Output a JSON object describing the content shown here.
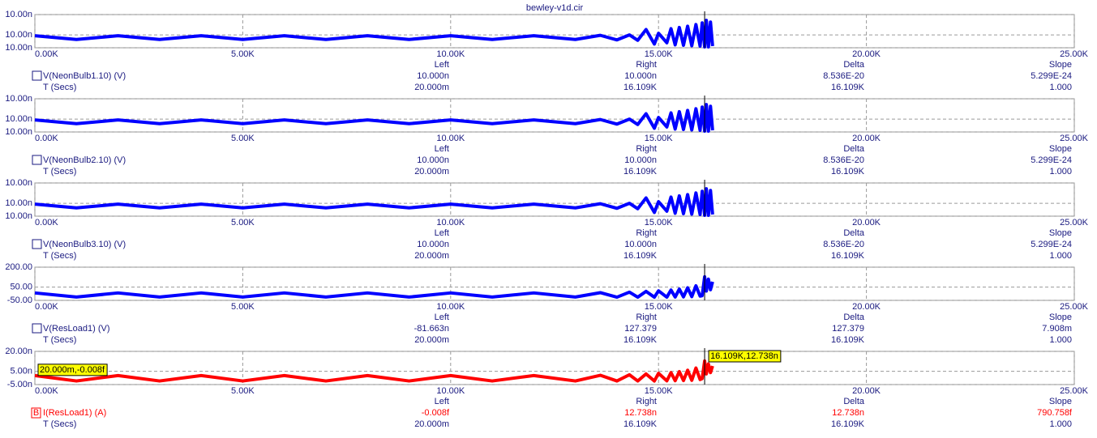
{
  "title": "bewley-v1d.cir",
  "chart_data": [
    {
      "type": "line",
      "series": [
        {
          "name": "V(NeonBulb1.10) (V)",
          "color": "#0000ff",
          "values": [
            9.9989,
            9.998,
            9.9989,
            9.998,
            9.9989,
            9.998,
            9.9989,
            9.998,
            9.9989,
            9.998,
            9.9989,
            9.998,
            9.9989,
            9.998,
            9.999,
            9.9979,
            9.9991,
            9.9978,
            10.0004,
            9.9969,
            9.9995,
            9.9972,
            10.0006,
            9.9967,
            10.0009,
            9.9966,
            10.0012,
            9.9965,
            10.0016,
            9.9964,
            10.002,
            9.9962,
            10.0026,
            9.9962,
            10.0022,
            9.9964
          ]
        }
      ],
      "x": [
        0,
        1000,
        2000,
        3000,
        4000,
        5000,
        6000,
        7000,
        8000,
        9000,
        10000,
        11000,
        12000,
        13000,
        13600,
        14000,
        14300,
        14500,
        14700,
        14900,
        15000,
        15200,
        15300,
        15400,
        15500,
        15600,
        15700,
        15800,
        15900,
        16000,
        16050,
        16109,
        16150,
        16200,
        16250,
        16300
      ],
      "xlim": [
        0,
        25000
      ],
      "xticks": [
        {
          "value": 0,
          "label": "0.00K"
        },
        {
          "value": 5000,
          "label": "5.00K"
        },
        {
          "value": 10000,
          "label": "10.00K"
        },
        {
          "value": 15000,
          "label": "15.00K"
        },
        {
          "value": 20000,
          "label": "20.00K"
        },
        {
          "value": 25000,
          "label": "25.00K"
        }
      ],
      "ylim": [
        9.996,
        10.004
      ],
      "yticks": [
        {
          "value": 10.004,
          "label": "10.00n"
        },
        {
          "value": 9.9991,
          "label": "10.00n"
        },
        {
          "value": 9.996,
          "label": "10.00n"
        }
      ],
      "grid": true,
      "cursor_x": 16109,
      "cursor": {
        "headers": [
          "Left",
          "Right",
          "Delta",
          "Slope"
        ],
        "y": [
          "10.000n",
          "10.000n",
          "8.536E-20",
          "5.299E-24"
        ],
        "x_label": "T (Secs)",
        "x": [
          "20.000m",
          "16.109K",
          "16.109K",
          "1.000"
        ]
      }
    },
    {
      "type": "line",
      "series": [
        {
          "name": "V(NeonBulb2.10) (V)",
          "color": "#0000ff",
          "values": [
            9.9989,
            9.998,
            9.9989,
            9.998,
            9.9989,
            9.998,
            9.9989,
            9.998,
            9.9989,
            9.998,
            9.9989,
            9.998,
            9.9989,
            9.998,
            9.999,
            9.9979,
            9.9991,
            9.9978,
            10.0004,
            9.9969,
            9.9995,
            9.9972,
            10.0006,
            9.9967,
            10.0009,
            9.9966,
            10.0012,
            9.9965,
            10.0016,
            9.9964,
            10.002,
            9.9962,
            10.0026,
            9.9962,
            10.0022,
            9.9964
          ]
        }
      ],
      "x": [
        0,
        1000,
        2000,
        3000,
        4000,
        5000,
        6000,
        7000,
        8000,
        9000,
        10000,
        11000,
        12000,
        13000,
        13600,
        14000,
        14300,
        14500,
        14700,
        14900,
        15000,
        15200,
        15300,
        15400,
        15500,
        15600,
        15700,
        15800,
        15900,
        16000,
        16050,
        16109,
        16150,
        16200,
        16250,
        16300
      ],
      "xlim": [
        0,
        25000
      ],
      "xticks": [
        {
          "value": 0,
          "label": "0.00K"
        },
        {
          "value": 5000,
          "label": "5.00K"
        },
        {
          "value": 10000,
          "label": "10.00K"
        },
        {
          "value": 15000,
          "label": "15.00K"
        },
        {
          "value": 20000,
          "label": "20.00K"
        },
        {
          "value": 25000,
          "label": "25.00K"
        }
      ],
      "ylim": [
        9.996,
        10.004
      ],
      "yticks": [
        {
          "value": 10.004,
          "label": "10.00n"
        },
        {
          "value": 9.9991,
          "label": "10.00n"
        },
        {
          "value": 9.996,
          "label": "10.00n"
        }
      ],
      "grid": true,
      "cursor_x": 16109,
      "cursor": {
        "headers": [
          "Left",
          "Right",
          "Delta",
          "Slope"
        ],
        "y": [
          "10.000n",
          "10.000n",
          "8.536E-20",
          "5.299E-24"
        ],
        "x_label": "T (Secs)",
        "x": [
          "20.000m",
          "16.109K",
          "16.109K",
          "1.000"
        ]
      }
    },
    {
      "type": "line",
      "series": [
        {
          "name": "V(NeonBulb3.10) (V)",
          "color": "#0000ff",
          "values": [
            9.9989,
            9.998,
            9.9989,
            9.998,
            9.9989,
            9.998,
            9.9989,
            9.998,
            9.9989,
            9.998,
            9.9989,
            9.998,
            9.9989,
            9.998,
            9.999,
            9.9979,
            9.9991,
            9.9978,
            10.0004,
            9.9969,
            9.9995,
            9.9972,
            10.0006,
            9.9967,
            10.0009,
            9.9966,
            10.0012,
            9.9965,
            10.0016,
            9.9964,
            10.002,
            9.9962,
            10.0026,
            9.9962,
            10.0022,
            9.9964
          ]
        }
      ],
      "x": [
        0,
        1000,
        2000,
        3000,
        4000,
        5000,
        6000,
        7000,
        8000,
        9000,
        10000,
        11000,
        12000,
        13000,
        13600,
        14000,
        14300,
        14500,
        14700,
        14900,
        15000,
        15200,
        15300,
        15400,
        15500,
        15600,
        15700,
        15800,
        15900,
        16000,
        16050,
        16109,
        16150,
        16200,
        16250,
        16300
      ],
      "xlim": [
        0,
        25000
      ],
      "xticks": [
        {
          "value": 0,
          "label": "0.00K"
        },
        {
          "value": 5000,
          "label": "5.00K"
        },
        {
          "value": 10000,
          "label": "10.00K"
        },
        {
          "value": 15000,
          "label": "15.00K"
        },
        {
          "value": 20000,
          "label": "20.00K"
        },
        {
          "value": 25000,
          "label": "25.00K"
        }
      ],
      "ylim": [
        9.996,
        10.004
      ],
      "yticks": [
        {
          "value": 10.004,
          "label": "10.00n"
        },
        {
          "value": 9.9991,
          "label": "10.00n"
        },
        {
          "value": 9.996,
          "label": "10.00n"
        }
      ],
      "grid": true,
      "cursor_x": 16109,
      "cursor": {
        "headers": [
          "Left",
          "Right",
          "Delta",
          "Slope"
        ],
        "y": [
          "10.000n",
          "10.000n",
          "8.536E-20",
          "5.299E-24"
        ],
        "x_label": "T (Secs)",
        "x": [
          "20.000m",
          "16.109K",
          "16.109K",
          "1.000"
        ]
      }
    },
    {
      "type": "line",
      "series": [
        {
          "name": "V(ResLoad1) (V)",
          "color": "#0000ff",
          "values": [
            6,
            -25,
            6,
            -25,
            6,
            -25,
            6,
            -25,
            6,
            -25,
            6,
            -25,
            6,
            -25,
            8,
            -26,
            12,
            -26,
            18,
            -26,
            22,
            -26,
            28,
            -25,
            35,
            -24,
            45,
            -22,
            60,
            -18,
            -15,
            127.379,
            20,
            110,
            30,
            90
          ]
        }
      ],
      "x": [
        0,
        1000,
        2000,
        3000,
        4000,
        5000,
        6000,
        7000,
        8000,
        9000,
        10000,
        11000,
        12000,
        13000,
        13600,
        14000,
        14300,
        14500,
        14700,
        14900,
        15000,
        15200,
        15300,
        15400,
        15500,
        15600,
        15700,
        15800,
        15900,
        16000,
        16050,
        16109,
        16150,
        16200,
        16250,
        16300
      ],
      "xlim": [
        0,
        25000
      ],
      "xticks": [
        {
          "value": 0,
          "label": "0.00K"
        },
        {
          "value": 5000,
          "label": "5.00K"
        },
        {
          "value": 10000,
          "label": "10.00K"
        },
        {
          "value": 15000,
          "label": "15.00K"
        },
        {
          "value": 20000,
          "label": "20.00K"
        },
        {
          "value": 25000,
          "label": "25.00K"
        }
      ],
      "ylim": [
        -50,
        200
      ],
      "yticks": [
        {
          "value": 200,
          "label": "200.00"
        },
        {
          "value": 50,
          "label": "50.00"
        },
        {
          "value": -50,
          "label": "-50.00"
        }
      ],
      "grid": true,
      "cursor_x": 16109,
      "cursor": {
        "headers": [
          "Left",
          "Right",
          "Delta",
          "Slope"
        ],
        "y": [
          "-81.663n",
          "127.379",
          "127.379",
          "7.908m"
        ],
        "x_label": "T (Secs)",
        "x": [
          "20.000m",
          "16.109K",
          "16.109K",
          "1.000"
        ]
      }
    },
    {
      "type": "line",
      "series": [
        {
          "name": "I(ResLoad1) (A)",
          "color": "#ff0000",
          "values": [
            1.8,
            -2.3,
            1.8,
            -2.3,
            1.8,
            -2.3,
            1.8,
            -2.3,
            1.8,
            -2.3,
            1.8,
            -2.3,
            1.8,
            -2.3,
            2,
            -2.3,
            2.4,
            -2.3,
            3,
            -2.3,
            3.5,
            -2.2,
            4,
            -2.1,
            4.8,
            -2,
            5.8,
            -1.8,
            7.5,
            -1.2,
            -0.5,
            12.738,
            3,
            10.5,
            4,
            9
          ]
        }
      ],
      "x": [
        0,
        1000,
        2000,
        3000,
        4000,
        5000,
        6000,
        7000,
        8000,
        9000,
        10000,
        11000,
        12000,
        13000,
        13600,
        14000,
        14300,
        14500,
        14700,
        14900,
        15000,
        15200,
        15300,
        15400,
        15500,
        15600,
        15700,
        15800,
        15900,
        16000,
        16050,
        16109,
        16150,
        16200,
        16250,
        16300
      ],
      "xlim": [
        0,
        25000
      ],
      "xticks": [
        {
          "value": 0,
          "label": "0.00K"
        },
        {
          "value": 5000,
          "label": "5.00K"
        },
        {
          "value": 10000,
          "label": "10.00K"
        },
        {
          "value": 15000,
          "label": "15.00K"
        },
        {
          "value": 20000,
          "label": "20.00K"
        },
        {
          "value": 25000,
          "label": "25.00K"
        }
      ],
      "ylim": [
        -5,
        20
      ],
      "yticks": [
        {
          "value": 20,
          "label": "20.00n"
        },
        {
          "value": 5,
          "label": "5.00n"
        },
        {
          "value": -5,
          "label": "-5.00n"
        }
      ],
      "grid": true,
      "cursor_x": 16109,
      "marker": "B",
      "annotations": [
        "20.000m,-0.008f",
        "16.109K,12.738n"
      ],
      "cursor": {
        "headers": [
          "Left",
          "Right",
          "Delta",
          "Slope"
        ],
        "y": [
          "-0.008f",
          "12.738n",
          "12.738n",
          "790.758f"
        ],
        "x_label": "T (Secs)",
        "x": [
          "20.000m",
          "16.109K",
          "16.109K",
          "1.000"
        ]
      }
    }
  ]
}
